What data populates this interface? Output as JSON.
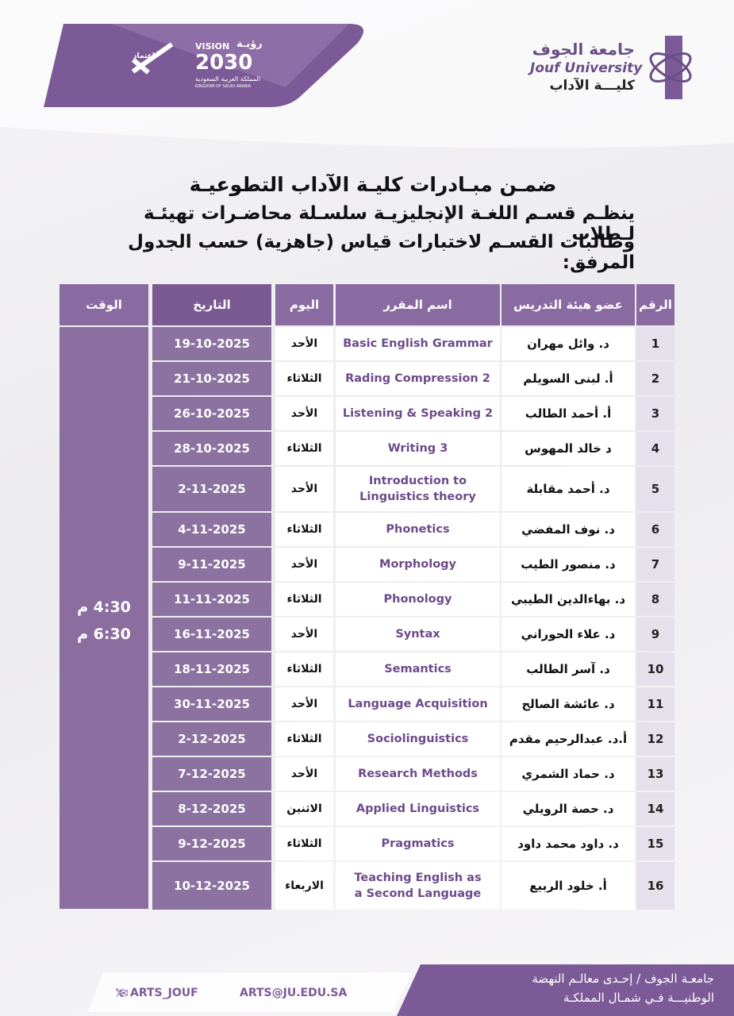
{
  "header": {
    "university_ar": "جامعة الجوف",
    "university_en": "Jouf University",
    "college": "كليـــة الآداب",
    "vision_label_en": "VISION",
    "vision_label_ar": "رؤيـة",
    "vision_year": "2030",
    "kingdom_ar": "المملكة العربية السعودية",
    "kingdom_en": "KINGDOM OF SAUDI ARABIA",
    "accreditation": "اعتماد"
  },
  "intro": {
    "title": "ضمـن مبـادرات كليـة الآداب التطوعيـة",
    "lines": [
      "ينظـم قسـم اللغـة الإنجليزيـة سلسـلة محاضـرات تهيئـة لـطلاب",
      "وطالبات القسـم لاختبارات قياس (جاهزية) حسب الجدول المرفق:"
    ]
  },
  "table": {
    "headers": [
      "الرقم",
      "عضو هيئة التدريس",
      "اسم المقرر",
      "اليوم",
      "التاريخ",
      "الوقت"
    ],
    "rows": [
      [
        "1",
        "د. وائل مهران",
        "Basic English Grammar",
        "الأحد",
        "19-10-2025"
      ],
      [
        "2",
        "أ. لبنى السويلم",
        "Rading Compression 2",
        "الثلاثاء",
        "21-10-2025"
      ],
      [
        "3",
        "أ. أحمد الطالب",
        "Listening & Speaking 2",
        "الأحد",
        "26-10-2025"
      ],
      [
        "4",
        "د خالد المهوس",
        "Writing 3",
        "الثلاثاء",
        "28-10-2025"
      ],
      [
        "5",
        "د. أحمد مقابلة",
        "Introduction to\nLinguistics theory",
        "الأحد",
        "2-11-2025"
      ],
      [
        "6",
        "د. نوف المفضي",
        "Phonetics",
        "الثلاثاء",
        "4-11-2025"
      ],
      [
        "7",
        "د. منصور الطيب",
        "Morphology",
        "الأحد",
        "9-11-2025"
      ],
      [
        "8",
        "د. بهاءالدين الطيبي",
        "Phonology",
        "الثلاثاء",
        "11-11-2025"
      ],
      [
        "9",
        "د. علاء الحوراني",
        "Syntax",
        "الأحد",
        "16-11-2025"
      ],
      [
        "10",
        "د. آسر الطالب",
        "Semantics",
        "الثلاثاء",
        "18-11-2025"
      ],
      [
        "11",
        "د. عائشة الصالح",
        "Language Acquisition",
        "الأحد",
        "30-11-2025"
      ],
      [
        "12",
        "أ.د. عبدالرحيم مقدم",
        "Sociolinguistics",
        "الثلاثاء",
        "2-12-2025"
      ],
      [
        "13",
        "د. حماد الشمري",
        "Research Methods",
        "الأحد",
        "7-12-2025"
      ],
      [
        "14",
        "د. حصة الرويلي",
        "Applied Linguistics",
        "الاثنين",
        "8-12-2025"
      ],
      [
        "15",
        "د. داود محمد داود",
        "Pragmatics",
        "الثلاثاء",
        "9-12-2025"
      ],
      [
        "16",
        "أ. خلود الربيع",
        "Teaching English as\na Second Language",
        "الاربعاء",
        "10-12-2025"
      ]
    ],
    "time": [
      "4:30 م",
      "6:30 م"
    ]
  },
  "footer": {
    "twitter": "ARTS_JOUF",
    "email": "ARTS@JU.EDU.SA",
    "slogan": [
      "جامعـة الجوف / إحـدى معالـم النهضة",
      "الوطنيـــة فـي شمـال المملكـة"
    ]
  }
}
